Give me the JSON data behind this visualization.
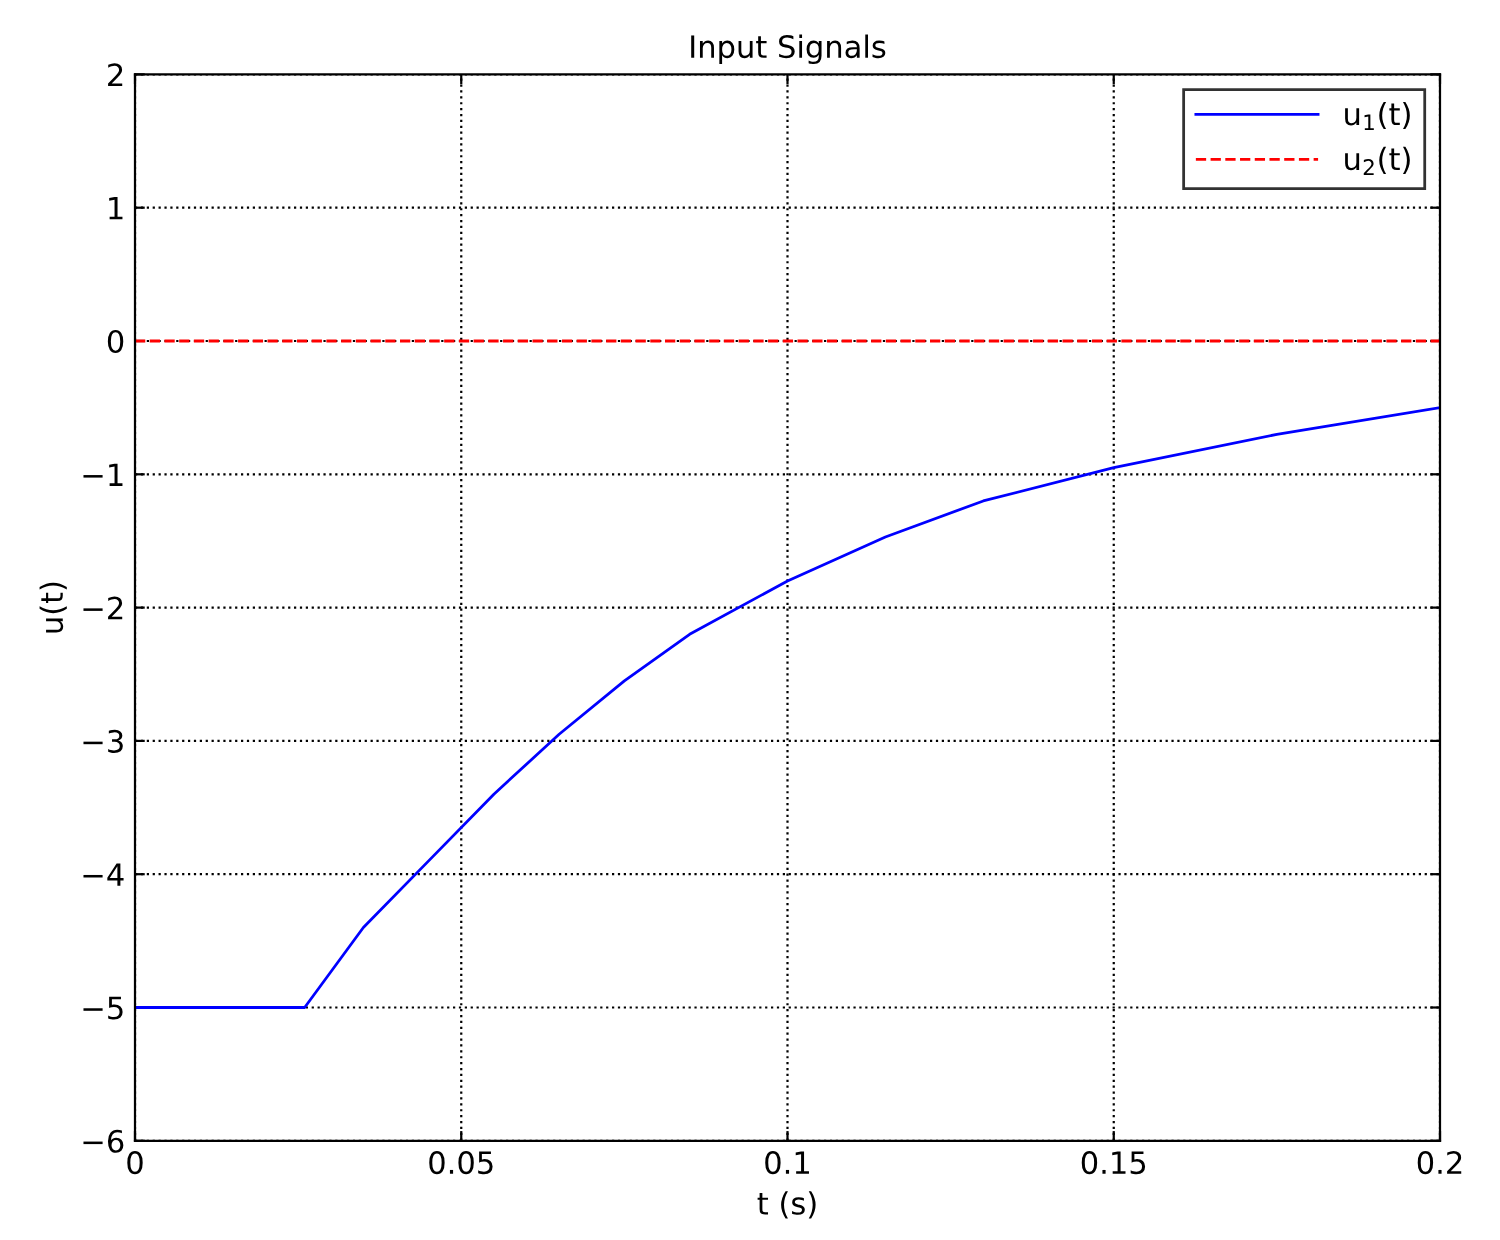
{
  "chart_data": {
    "type": "line",
    "title": "Input Signals",
    "xlabel": "t (s)",
    "ylabel": "u(t)",
    "xlim": [
      0,
      0.2
    ],
    "xticks": [
      0,
      0.05,
      0.1,
      0.15,
      0.2
    ],
    "ylim": [
      -6,
      2
    ],
    "yticks": [
      {
        "value": -6,
        "label": "−6"
      },
      {
        "value": -5,
        "label": "−5"
      },
      {
        "value": -4,
        "label": "−4"
      },
      {
        "value": -3,
        "label": "−3"
      },
      {
        "value": -2,
        "label": "−2"
      },
      {
        "value": -1,
        "label": "−1"
      },
      0,
      1,
      2
    ],
    "grid": true,
    "legend": "top right",
    "marker": "none",
    "series": [
      {
        "name": "u$_{1}$(t)",
        "color": "#0000ff",
        "line_style": "solid",
        "x": [
          0,
          0.026,
          0.035,
          0.045,
          0.055,
          0.065,
          0.075,
          0.085,
          0.1,
          0.115,
          0.13,
          0.15,
          0.175,
          0.2
        ],
        "values": [
          -5,
          -5,
          -4.4,
          -3.9,
          -3.4,
          -2.95,
          -2.55,
          -2.2,
          -1.8,
          -1.47,
          -1.2,
          -0.95,
          -0.7,
          -0.5
        ]
      },
      {
        "name": "u$_{2}$(t)",
        "color": "#ff0000",
        "line_style": "dashed",
        "x": [
          0,
          0.2
        ],
        "values": [
          0,
          0
        ]
      }
    ]
  }
}
